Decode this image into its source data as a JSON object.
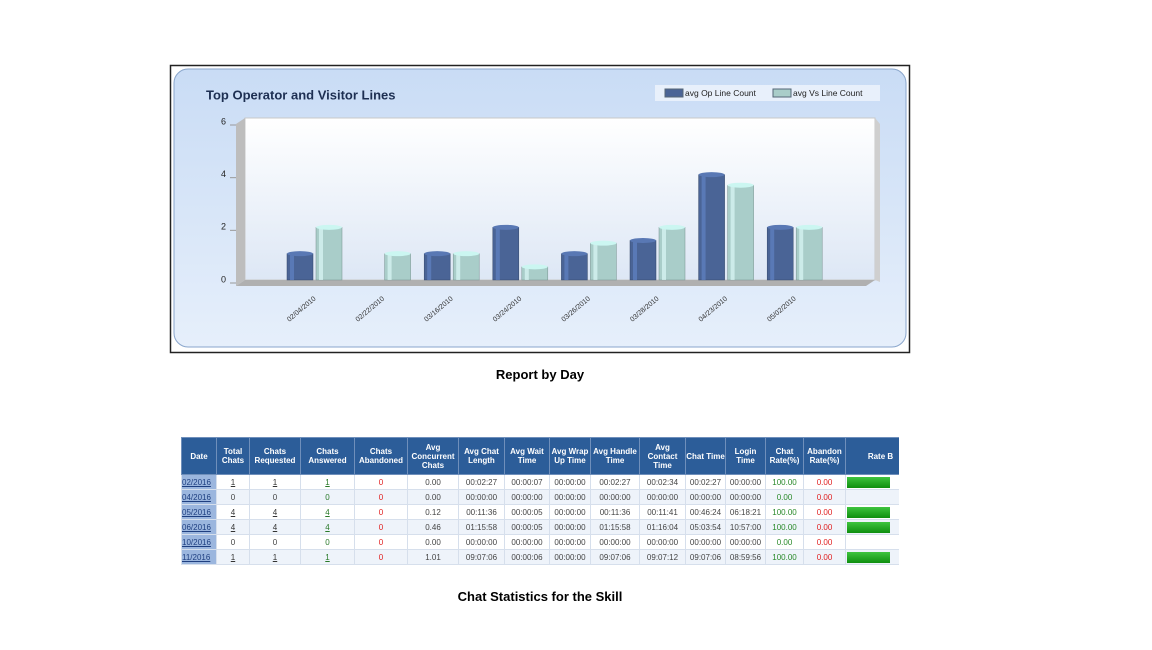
{
  "chart_data": {
    "type": "bar",
    "title": "Top Operator and Visitor Lines",
    "categories": [
      "02/04/2010",
      "02/22/2010",
      "03/16/2010",
      "03/24/2010",
      "03/26/2010",
      "03/28/2010",
      "04/23/2010",
      "05/02/2010"
    ],
    "series": [
      {
        "name": "avg Op Line Count",
        "color": "#4a6496",
        "values": [
          1,
          0,
          1,
          2,
          1,
          1.5,
          4,
          2
        ]
      },
      {
        "name": "avg Vs Line Count",
        "color": "#a9cdc9",
        "values": [
          2,
          1,
          1,
          0.5,
          1.4,
          2,
          3.6,
          2
        ]
      }
    ],
    "ylim": [
      0,
      6
    ],
    "yticks": [
      0,
      2,
      4,
      6
    ],
    "legend": "top-right"
  },
  "chart_caption": "Report by Day",
  "table": {
    "columns": [
      "Date",
      "Total Chats",
      "Chats Requested",
      "Chats Answered",
      "Chats Abandoned",
      "Avg Concurrent Chats",
      "Avg Chat Length",
      "Avg Wait Time",
      "Avg Wrap Up Time",
      "Avg Handle Time",
      "Avg Contact Time",
      "Chat Time",
      "Login Time",
      "Chat Rate(%)",
      "Abandon Rate(%)",
      "Rate B"
    ],
    "rows": [
      [
        "02/2016",
        "1",
        "1",
        "1",
        "0",
        "0.00",
        "00:02:27",
        "00:00:07",
        "00:00:00",
        "00:02:27",
        "00:02:34",
        "00:02:27",
        "00:00:00",
        "100.00",
        "0.00"
      ],
      [
        "04/2016",
        "0",
        "0",
        "0",
        "0",
        "0.00",
        "00:00:00",
        "00:00:00",
        "00:00:00",
        "00:00:00",
        "00:00:00",
        "00:00:00",
        "00:00:00",
        "0.00",
        "0.00"
      ],
      [
        "05/2016",
        "4",
        "4",
        "4",
        "0",
        "0.12",
        "00:11:36",
        "00:00:05",
        "00:00:00",
        "00:11:36",
        "00:11:41",
        "00:46:24",
        "06:18:21",
        "100.00",
        "0.00"
      ],
      [
        "06/2016",
        "4",
        "4",
        "4",
        "0",
        "0.46",
        "01:15:58",
        "00:00:05",
        "00:00:00",
        "01:15:58",
        "01:16:04",
        "05:03:54",
        "10:57:00",
        "100.00",
        "0.00"
      ],
      [
        "10/2016",
        "0",
        "0",
        "0",
        "0",
        "0.00",
        "00:00:00",
        "00:00:00",
        "00:00:00",
        "00:00:00",
        "00:00:00",
        "00:00:00",
        "00:00:00",
        "0.00",
        "0.00"
      ],
      [
        "11/2016",
        "1",
        "1",
        "1",
        "0",
        "1.01",
        "09:07:06",
        "00:00:06",
        "00:00:00",
        "09:07:06",
        "09:07:12",
        "09:07:06",
        "08:59:56",
        "100.00",
        "0.00"
      ]
    ]
  },
  "table_caption": "Chat Statistics for the Skill"
}
